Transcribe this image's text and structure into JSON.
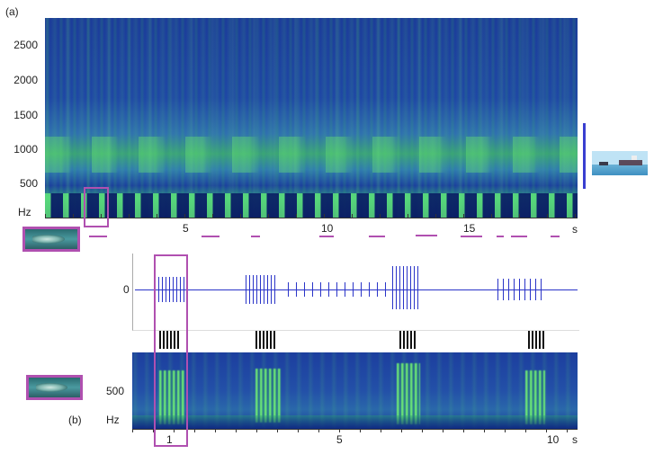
{
  "panel_a": {
    "label": "(a)",
    "y_ticks": [
      "2500",
      "2000",
      "1500",
      "1000",
      "500",
      "Hz"
    ],
    "x_ticks": [
      "5",
      "10",
      "15",
      "s"
    ]
  },
  "panel_b": {
    "label": "(b)",
    "wave_zero": "0",
    "y_ticks": [
      "500",
      "Hz"
    ],
    "x_ticks": [
      "1",
      "5",
      "10",
      "s"
    ]
  },
  "colors": {
    "highlight_box": "#b050b0",
    "ship_bar": "#3a3fd0",
    "waveform": "#2a34c8"
  },
  "icons": {
    "fish_photo_a": "fish-photo-icon",
    "fish_photo_b": "fish-photo-icon",
    "ship_photo": "ship-photo-icon"
  }
}
